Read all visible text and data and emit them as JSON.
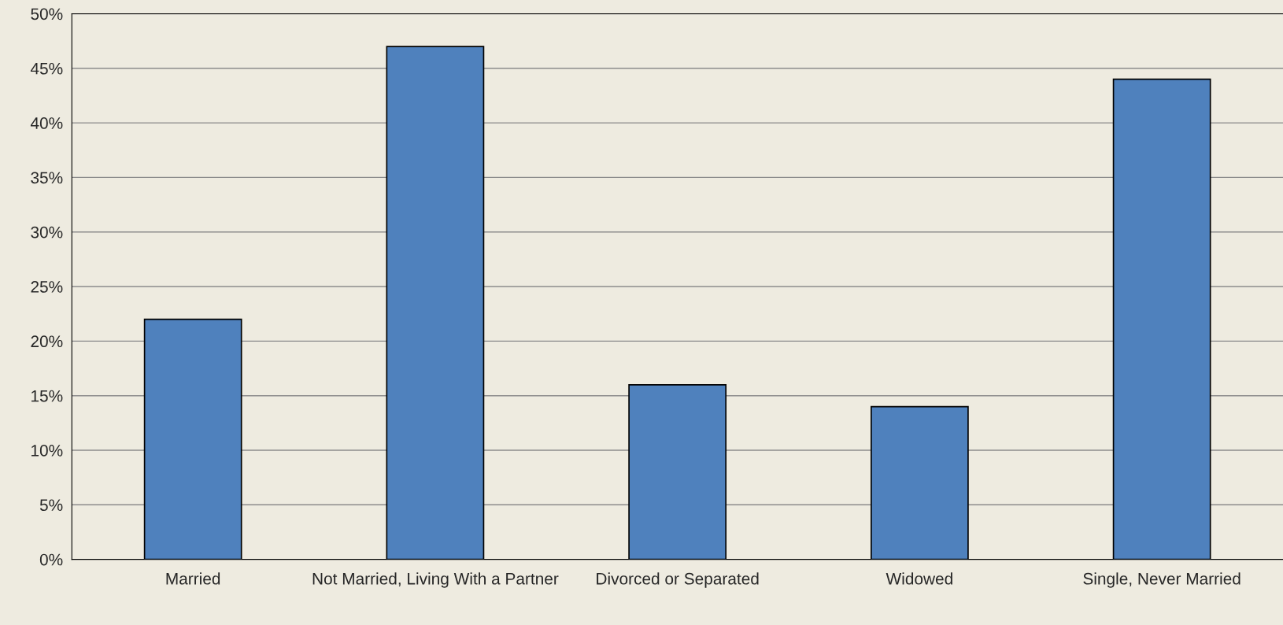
{
  "chart_data": {
    "type": "bar",
    "categories": [
      "Married",
      "Not Married, Living With a Partner",
      "Divorced or Separated",
      "Widowed",
      "Single, Never Married"
    ],
    "values": [
      22,
      47,
      16,
      14,
      44
    ],
    "color": "#4f81bd",
    "ylim": [
      0,
      50
    ],
    "yticks": [
      {
        "value": 0,
        "label": "0%"
      },
      {
        "value": 5,
        "label": "5%"
      },
      {
        "value": 10,
        "label": "10%"
      },
      {
        "value": 15,
        "label": "15%"
      },
      {
        "value": 20,
        "label": "20%"
      },
      {
        "value": 25,
        "label": "25%"
      },
      {
        "value": 30,
        "label": "30%"
      },
      {
        "value": 35,
        "label": "35%"
      },
      {
        "value": 40,
        "label": "40%"
      },
      {
        "value": 45,
        "label": "45%"
      },
      {
        "value": 50,
        "label": "50%"
      }
    ],
    "grid": "y"
  }
}
